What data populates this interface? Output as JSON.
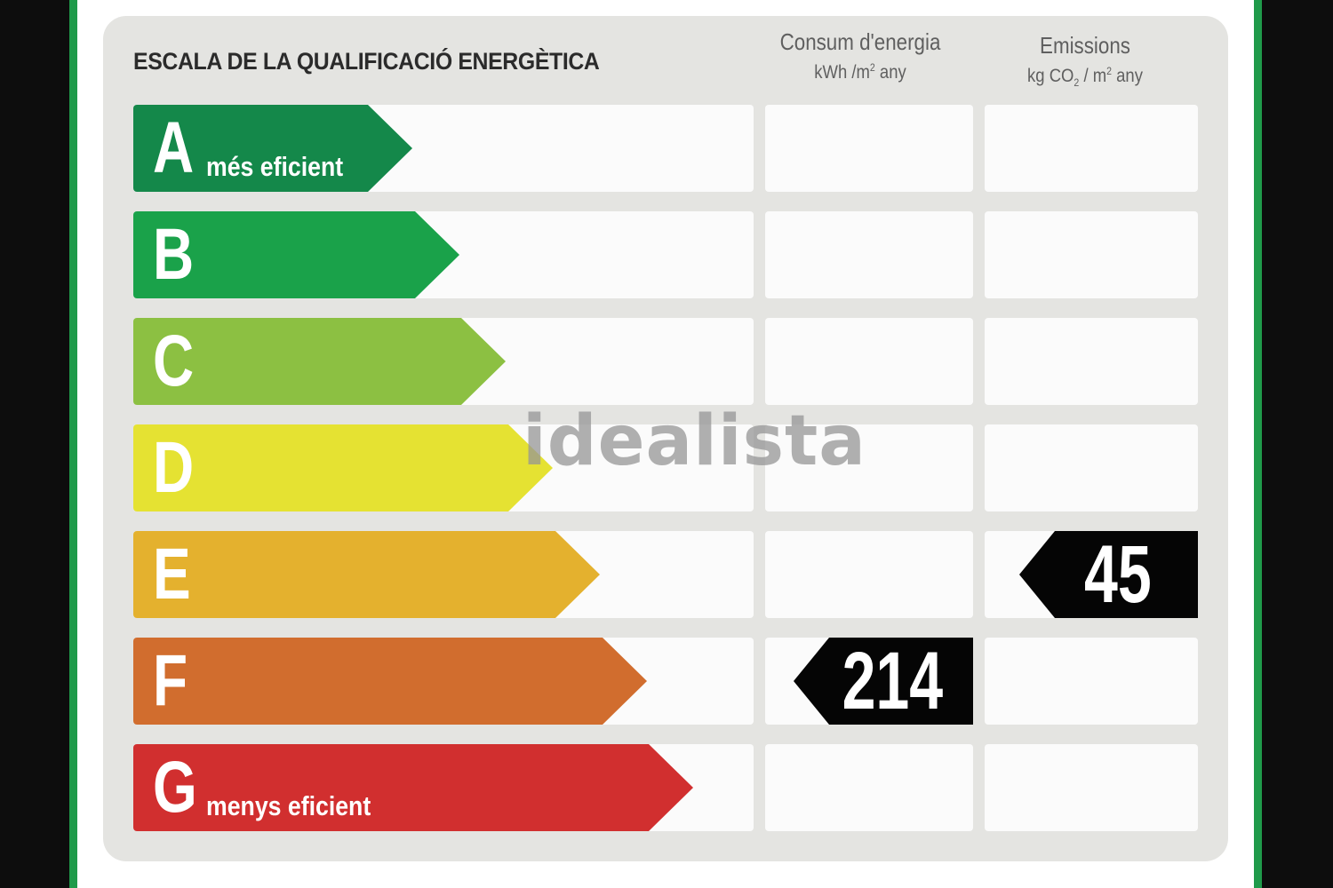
{
  "title": "ESCALA DE LA QUALIFICACIÓ ENERGÈTICA",
  "columns": {
    "energy": {
      "label": "Consum d'energia",
      "unit_prefix": "kWh /m",
      "unit_sup": "2",
      "unit_suffix": " any"
    },
    "emissions": {
      "label": "Emissions",
      "unit_prefix": "kg CO",
      "unit_sub": "2",
      "unit_mid": " / m",
      "unit_sup": "2",
      "unit_suffix": " any"
    }
  },
  "ratings": [
    {
      "letter": "A",
      "sublabel": "més eficient",
      "color": "#14884a"
    },
    {
      "letter": "B",
      "sublabel": "",
      "color": "#1aa24a"
    },
    {
      "letter": "C",
      "sublabel": "",
      "color": "#8cc042"
    },
    {
      "letter": "D",
      "sublabel": "",
      "color": "#e5e232"
    },
    {
      "letter": "E",
      "sublabel": "",
      "color": "#e4b12e"
    },
    {
      "letter": "F",
      "sublabel": "",
      "color": "#d16d2e"
    },
    {
      "letter": "G",
      "sublabel": "menys eficient",
      "color": "#d12f2f"
    }
  ],
  "energy_value": {
    "value": "214",
    "rating": "F"
  },
  "emissions_value": {
    "value": "45",
    "rating": "E"
  },
  "watermark": "idealista"
}
